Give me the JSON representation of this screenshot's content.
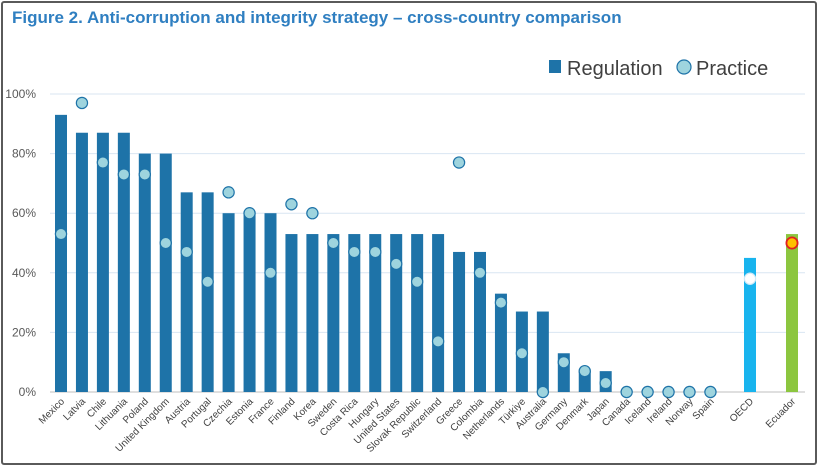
{
  "chart_data": {
    "type": "bar",
    "title": "Figure 2. Anti-corruption and integrity strategy – cross-country comparison",
    "categories": [
      "Mexico",
      "Latvia",
      "Chile",
      "Lithuania",
      "Poland",
      "United Kingdom",
      "Austria",
      "Portugal",
      "Czechia",
      "Estonia",
      "France",
      "Finland",
      "Korea",
      "Sweden",
      "Costa Rica",
      "Hungary",
      "United States",
      "Slovak Republic",
      "Switzerland",
      "Greece",
      "Colombia",
      "Netherlands",
      "Türkiye",
      "Australia",
      "Germany",
      "Denmark",
      "Japan",
      "Canada",
      "Iceland",
      "Ireland",
      "Norway",
      "Spain",
      "OECD",
      "Ecuador"
    ],
    "series": [
      {
        "name": "Regulation",
        "marker": "bar",
        "values": [
          93,
          87,
          87,
          87,
          80,
          80,
          67,
          67,
          60,
          60,
          60,
          53,
          53,
          53,
          53,
          53,
          53,
          53,
          53,
          47,
          47,
          33,
          27,
          27,
          13,
          7,
          7,
          0,
          0,
          0,
          0,
          0,
          45,
          53
        ]
      },
      {
        "name": "Practice",
        "marker": "circle",
        "values": [
          53,
          97,
          77,
          73,
          73,
          50,
          47,
          37,
          67,
          60,
          40,
          63,
          60,
          50,
          47,
          47,
          43,
          37,
          17,
          77,
          40,
          30,
          13,
          0,
          10,
          7,
          3,
          0,
          0,
          0,
          0,
          0,
          38,
          50
        ]
      }
    ],
    "ylim": [
      0,
      100
    ],
    "yticks": [
      0,
      20,
      40,
      60,
      80,
      100
    ],
    "ytick_labels": [
      "0%",
      "20%",
      "40%",
      "60%",
      "80%",
      "100%"
    ],
    "xlabel": "",
    "ylabel": "",
    "legend": {
      "position": "top-right",
      "labels": [
        "Regulation",
        "Practice"
      ]
    },
    "grid": true,
    "colors": {
      "bar": "#1e73a8",
      "oecd_bar": "#18b4ee",
      "ecuador_bar": "#8cc63f",
      "dot_fill": "#9ed4de",
      "dot_stroke": "#1e73a8",
      "oecd_dot_fill": "#ffffff",
      "ecuador_dot_fill": "#ffc000",
      "ecuador_dot_stroke": "#e02020",
      "title": "#2f7fc1",
      "grid": "#d9e6f2"
    }
  }
}
